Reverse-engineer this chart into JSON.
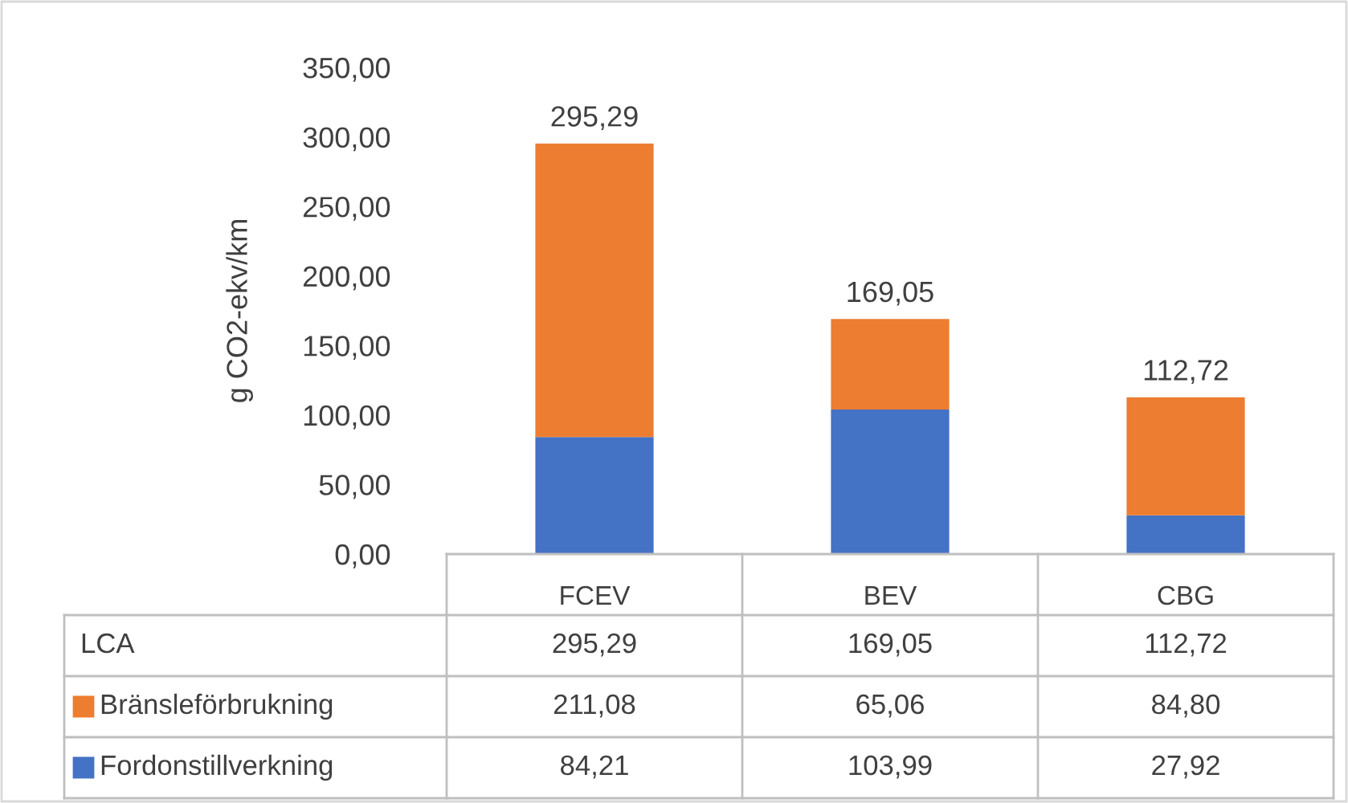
{
  "chart_data": {
    "type": "bar",
    "stacked": true,
    "ylabel": "g CO2-ekv/km",
    "categories": [
      "FCEV",
      "BEV",
      "CBG"
    ],
    "series": [
      {
        "name": "Fordonstillverkning",
        "color": "#4472c4",
        "values": [
          84.21,
          103.99,
          27.92
        ],
        "value_labels": [
          "84,21",
          "103,99",
          "27,92"
        ]
      },
      {
        "name": "Bränsleförbrukning",
        "color": "#ed7d31",
        "values": [
          211.08,
          65.06,
          84.8
        ],
        "value_labels": [
          "211,08",
          "65,06",
          "84,80"
        ]
      }
    ],
    "totals": [
      "295,29",
      "169,05",
      "112,72"
    ],
    "annotations": [
      "LCA"
    ],
    "ylim": [
      0,
      350
    ],
    "yticks": [
      {
        "value": 0,
        "label": "0,00"
      },
      {
        "value": 50,
        "label": "50,00"
      },
      {
        "value": 100,
        "label": "100,00"
      },
      {
        "value": 150,
        "label": "150,00"
      },
      {
        "value": 200,
        "label": "200,00"
      },
      {
        "value": 250,
        "label": "250,00"
      },
      {
        "value": 300,
        "label": "300,00"
      },
      {
        "value": 350,
        "label": "350,00"
      }
    ],
    "grid": false,
    "legend": "bottom"
  }
}
